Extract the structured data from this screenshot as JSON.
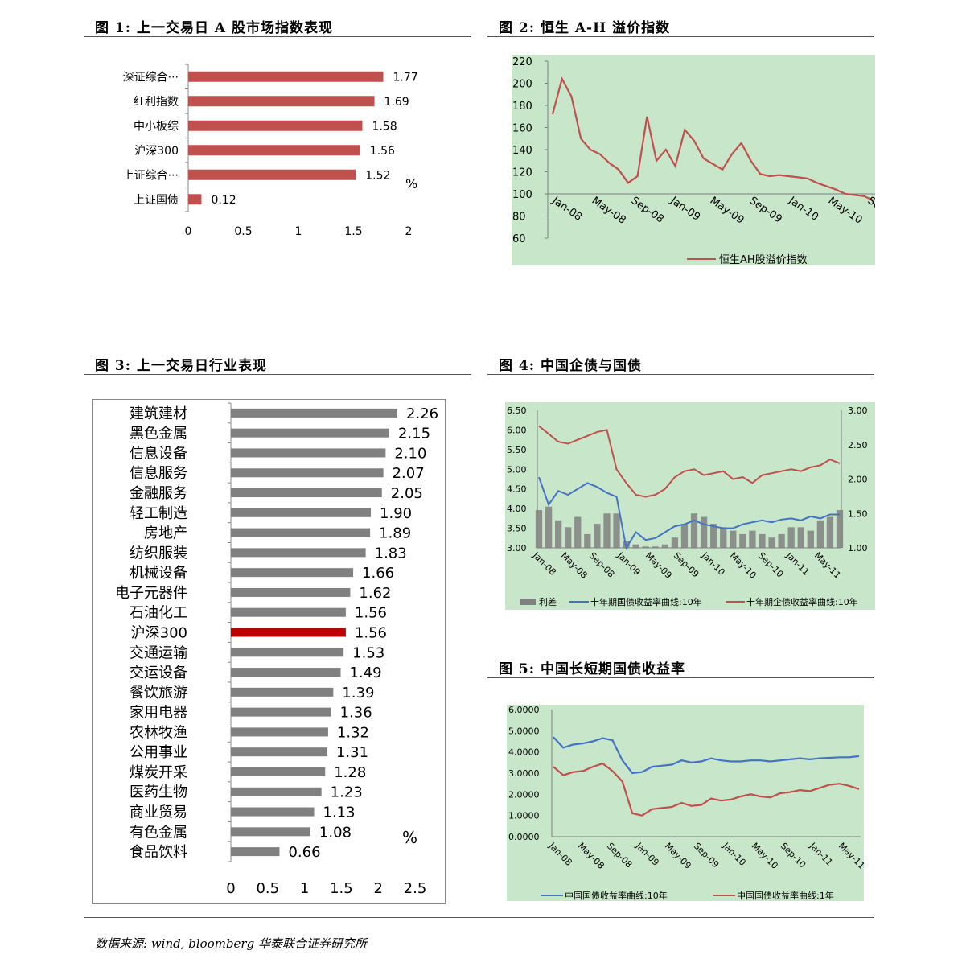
{
  "figures": {
    "f1_title": "图 1: 上一交易日 A 股市场指数表现",
    "f2_title": "图 2: 恒生 A-H 溢价指数",
    "f3_title": "图 3: 上一交易日行业表现",
    "f4_title": "图 4: 中国企债与国债",
    "f5_title": "图 5: 中国长短期国债收益率"
  },
  "source_note": "数据来源: wind, bloomberg 华泰联合证券研究所",
  "chart_data": [
    {
      "id": "fig1",
      "type": "bar",
      "orientation": "horizontal",
      "categories": [
        "深证综合···",
        "红利指数",
        "中小板综",
        "沪深300",
        "上证综合···",
        "上证国债"
      ],
      "values": [
        1.77,
        1.69,
        1.58,
        1.56,
        1.52,
        0.12
      ],
      "value_labels": [
        "1.77",
        "1.69",
        "1.58",
        "1.56",
        "1.52",
        "0.12"
      ],
      "xlim": [
        0,
        2
      ],
      "x_ticks": [
        "0",
        "0.5",
        "1",
        "1.5",
        "2"
      ],
      "unit_label": "%",
      "bar_color": "#c0504d"
    },
    {
      "id": "fig2",
      "type": "line",
      "ylim": [
        60,
        220
      ],
      "y_ticks": [
        "60",
        "80",
        "100",
        "120",
        "140",
        "160",
        "180",
        "200",
        "220"
      ],
      "x_ticks": [
        "Jan-08",
        "May-08",
        "Sep-08",
        "Jan-09",
        "May-09",
        "Sep-09",
        "Jan-10",
        "May-10",
        "Sep"
      ],
      "series": [
        {
          "name": "恒生AH股溢价指数",
          "color": "#c0504d",
          "x": [
            0,
            1,
            2,
            3,
            4,
            5,
            6,
            7,
            8,
            9,
            10,
            11,
            12,
            13,
            14,
            15,
            16,
            17,
            18,
            19,
            20,
            21,
            22,
            23,
            24,
            25,
            26,
            27,
            28,
            29,
            30,
            31,
            32,
            33,
            34
          ],
          "values": [
            172,
            204,
            188,
            150,
            140,
            136,
            128,
            122,
            110,
            116,
            170,
            130,
            140,
            125,
            158,
            148,
            132,
            127,
            122,
            136,
            146,
            130,
            118,
            116,
            117,
            116,
            115,
            114,
            110,
            107,
            104,
            100,
            99,
            98,
            94
          ]
        }
      ],
      "plot_bg": "#c8e6c9"
    },
    {
      "id": "fig3",
      "type": "bar",
      "orientation": "horizontal",
      "categories": [
        "建筑建材",
        "黑色金属",
        "信息设备",
        "信息服务",
        "金融服务",
        "轻工制造",
        "房地产",
        "纺织服装",
        "机械设备",
        "电子元器件",
        "石油化工",
        "沪深300",
        "交通运输",
        "交运设备",
        "餐饮旅游",
        "家用电器",
        "农林牧渔",
        "公用事业",
        "煤炭开采",
        "医药生物",
        "商业贸易",
        "有色金属",
        "食品饮料"
      ],
      "values": [
        2.26,
        2.15,
        2.1,
        2.07,
        2.05,
        1.9,
        1.89,
        1.83,
        1.66,
        1.62,
        1.56,
        1.56,
        1.53,
        1.49,
        1.39,
        1.36,
        1.32,
        1.31,
        1.28,
        1.23,
        1.13,
        1.08,
        0.66
      ],
      "value_labels": [
        "2.26",
        "2.15",
        "2.10",
        "2.07",
        "2.05",
        "1.90",
        "1.89",
        "1.83",
        "1.66",
        "1.62",
        "1.56",
        "1.56",
        "1.53",
        "1.49",
        "1.39",
        "1.36",
        "1.32",
        "1.31",
        "1.28",
        "1.23",
        "1.13",
        "1.08",
        "0.66"
      ],
      "highlight_index": 11,
      "xlim": [
        0,
        2.5
      ],
      "x_ticks": [
        "0",
        "0.5",
        "1",
        "1.5",
        "2",
        "2.5"
      ],
      "unit_label": "%",
      "bar_color": "#808080",
      "highlight_color": "#c00000"
    },
    {
      "id": "fig4",
      "type": "line",
      "ylim_left": [
        3.0,
        6.5
      ],
      "ylim_right": [
        1.0,
        3.0
      ],
      "y_ticks_left": [
        "3.00",
        "3.50",
        "4.00",
        "4.50",
        "5.00",
        "5.50",
        "6.00",
        "6.50"
      ],
      "y_ticks_right": [
        "1.00",
        "1.50",
        "2.00",
        "2.50",
        "3.00"
      ],
      "x_ticks": [
        "Jan-08",
        "May-08",
        "Sep-08",
        "Jan-09",
        "May-09",
        "Sep-09",
        "Jan-10",
        "May-10",
        "Sep-10",
        "Jan-11",
        "May-11"
      ],
      "series": [
        {
          "name": "利差",
          "axis": "right",
          "kind": "bar",
          "color": "#808080",
          "values": [
            1.55,
            1.6,
            1.4,
            1.3,
            1.45,
            1.2,
            1.35,
            1.5,
            1.5,
            1.1,
            1.05,
            1.02,
            1.02,
            1.05,
            1.15,
            1.35,
            1.5,
            1.45,
            1.35,
            1.3,
            1.25,
            1.2,
            1.25,
            1.2,
            1.15,
            1.2,
            1.3,
            1.3,
            1.25,
            1.4,
            1.45,
            1.55
          ]
        },
        {
          "name": "十年期国债收益率曲线:10年",
          "axis": "left",
          "kind": "line",
          "color": "#4472c4",
          "values": [
            4.8,
            4.1,
            4.45,
            4.35,
            4.5,
            4.65,
            4.55,
            4.4,
            4.3,
            3.0,
            3.4,
            3.2,
            3.25,
            3.4,
            3.55,
            3.6,
            3.7,
            3.6,
            3.55,
            3.5,
            3.5,
            3.6,
            3.65,
            3.7,
            3.65,
            3.72,
            3.75,
            3.7,
            3.8,
            3.75,
            3.85,
            3.85
          ]
        },
        {
          "name": "十年期企债收益率曲线:10年",
          "axis": "left",
          "kind": "line",
          "color": "#c0504d",
          "values": [
            6.1,
            5.9,
            5.7,
            5.65,
            5.75,
            5.85,
            5.95,
            6.0,
            5.0,
            4.65,
            4.35,
            4.3,
            4.35,
            4.5,
            4.8,
            4.95,
            5.0,
            4.85,
            4.9,
            4.95,
            4.75,
            4.8,
            4.65,
            4.85,
            4.9,
            4.95,
            5.0,
            4.95,
            5.05,
            5.1,
            5.25,
            5.15
          ]
        }
      ],
      "plot_bg": "#c8e6c9"
    },
    {
      "id": "fig5",
      "type": "line",
      "ylim": [
        0.0,
        6.0
      ],
      "y_ticks": [
        "0.0000",
        "1.0000",
        "2.0000",
        "3.0000",
        "4.0000",
        "5.0000",
        "6.0000"
      ],
      "x_ticks": [
        "Jan-08",
        "May-08",
        "Sep-08",
        "Jan-09",
        "May-09",
        "Sep-09",
        "Jan-10",
        "May-10",
        "Sep-10",
        "Jan-11",
        "May-11"
      ],
      "series": [
        {
          "name": "中国国债收益率曲线:10年",
          "color": "#4472c4",
          "values": [
            4.7,
            4.2,
            4.35,
            4.4,
            4.5,
            4.65,
            4.55,
            3.6,
            3.0,
            3.05,
            3.3,
            3.35,
            3.4,
            3.6,
            3.5,
            3.55,
            3.7,
            3.6,
            3.55,
            3.55,
            3.6,
            3.6,
            3.55,
            3.6,
            3.65,
            3.7,
            3.65,
            3.7,
            3.72,
            3.75,
            3.75,
            3.8
          ]
        },
        {
          "name": "中国国债收益率曲线:1年",
          "color": "#c0504d",
          "values": [
            3.3,
            2.9,
            3.05,
            3.1,
            3.3,
            3.45,
            3.1,
            2.6,
            1.1,
            1.0,
            1.3,
            1.35,
            1.4,
            1.6,
            1.45,
            1.5,
            1.8,
            1.7,
            1.75,
            1.9,
            2.0,
            1.9,
            1.85,
            2.05,
            2.1,
            2.2,
            2.15,
            2.3,
            2.45,
            2.5,
            2.4,
            2.25
          ]
        }
      ],
      "plot_bg": "#c8e6c9"
    }
  ]
}
